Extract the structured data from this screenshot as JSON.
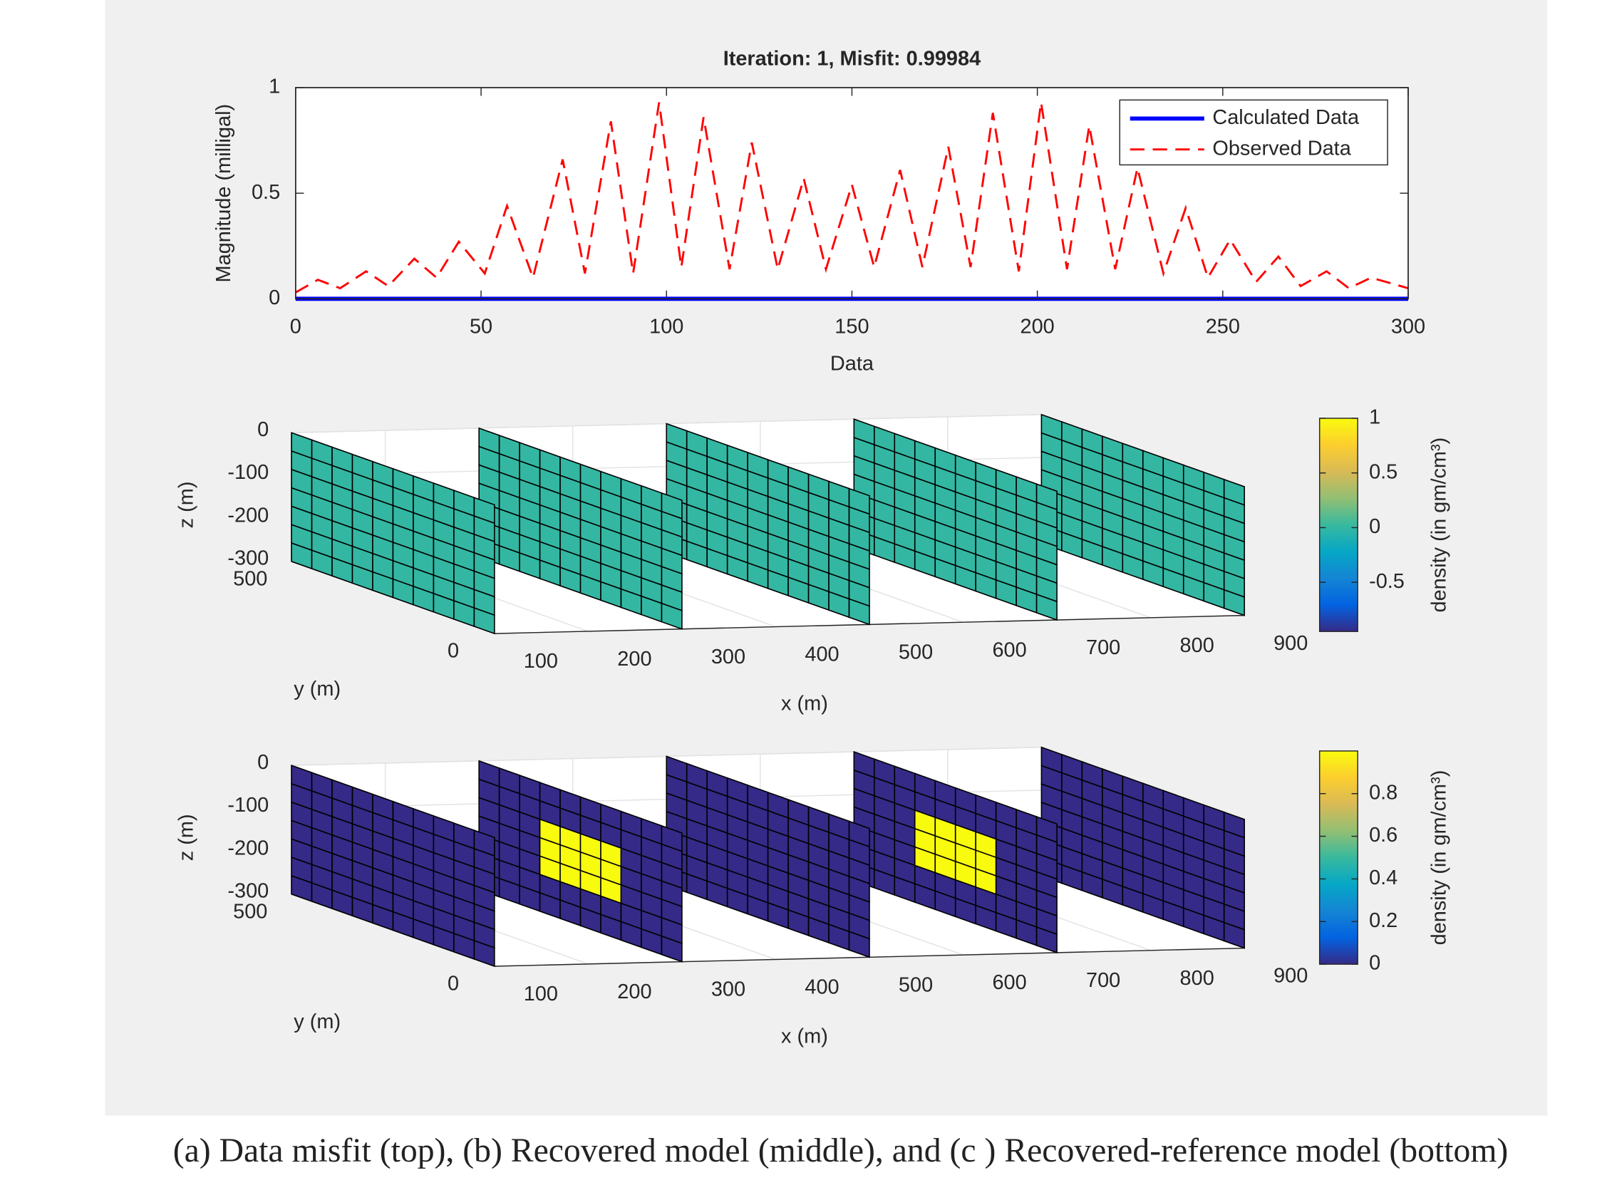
{
  "chart_data": [
    {
      "type": "line",
      "title": "Iteration: 1, Misfit: 0.99984",
      "xlabel": "Data",
      "ylabel": "Magnitude (milligal)",
      "xlim": [
        0,
        300
      ],
      "xticks": [
        0,
        50,
        100,
        150,
        200,
        250,
        300
      ],
      "ylim": [
        0,
        1
      ],
      "yticks": [
        0,
        0.5,
        1
      ],
      "grid": false,
      "legend": "upper right",
      "series": [
        {
          "name": "Calculated Data",
          "color": "#0000ff",
          "style": "solid",
          "x": [
            0,
            300
          ],
          "values": [
            0,
            0
          ]
        },
        {
          "name": "Observed Data",
          "color": "#ff0000",
          "style": "dashed",
          "x": [
            0,
            6,
            12,
            19,
            25,
            32,
            38,
            44,
            51,
            57,
            64,
            72,
            78,
            85,
            91,
            98,
            104,
            110,
            117,
            123,
            130,
            137,
            143,
            150,
            156,
            163,
            169,
            176,
            182,
            188,
            195,
            201,
            208,
            214,
            221,
            227,
            234,
            240,
            246,
            252,
            259,
            265,
            271,
            278,
            284,
            290,
            300
          ],
          "values": [
            0.03,
            0.09,
            0.05,
            0.13,
            0.06,
            0.19,
            0.1,
            0.27,
            0.12,
            0.44,
            0.1,
            0.66,
            0.12,
            0.84,
            0.12,
            0.93,
            0.15,
            0.86,
            0.14,
            0.74,
            0.14,
            0.57,
            0.14,
            0.54,
            0.15,
            0.61,
            0.15,
            0.72,
            0.15,
            0.88,
            0.13,
            0.93,
            0.14,
            0.82,
            0.14,
            0.62,
            0.12,
            0.43,
            0.1,
            0.28,
            0.08,
            0.2,
            0.06,
            0.13,
            0.05,
            0.1,
            0.05
          ]
        }
      ]
    },
    {
      "type": "slice3d",
      "xlabel": "x (m)",
      "ylabel": "y (m)",
      "zlabel": "z (m)",
      "xlim": [
        100,
        900
      ],
      "xticks": [
        100,
        200,
        300,
        400,
        500,
        600,
        700,
        800,
        900
      ],
      "ylim": [
        0,
        500
      ],
      "yticks": [
        0,
        500
      ],
      "zlim": [
        -300,
        0
      ],
      "zticks": [
        0,
        -100,
        -200,
        -300
      ],
      "colormap": [
        "#352a87",
        "#0363e1",
        "#1485d4",
        "#06a7c6",
        "#38b99e",
        "#92bf73",
        "#d9ba56",
        "#fcce2e",
        "#f9fb0e"
      ],
      "colorbar": {
        "label": "density (in gm/cm³)",
        "clim": [
          -0.95,
          1
        ],
        "ticks": [
          -0.5,
          0,
          0.5,
          1
        ]
      },
      "slices": [
        {
          "x": 100,
          "values": [
            [
              0,
              0,
              0,
              0,
              0,
              0,
              0,
              0,
              0,
              0
            ],
            [
              0,
              0,
              0,
              0,
              0,
              0,
              0,
              0,
              0,
              0
            ],
            [
              0,
              0,
              0,
              0,
              0,
              0,
              0,
              0,
              0,
              0
            ],
            [
              0,
              0,
              0,
              0,
              0,
              0,
              0,
              0,
              0,
              0
            ],
            [
              0,
              0,
              0,
              0,
              0,
              0,
              0,
              0,
              0,
              0
            ],
            [
              0,
              0,
              0,
              0,
              0,
              0,
              0,
              0,
              0,
              0
            ],
            [
              0,
              0,
              0,
              0,
              0,
              0,
              0,
              0,
              0,
              0
            ]
          ]
        },
        {
          "x": 300,
          "values": [
            [
              0,
              0,
              0,
              0,
              0,
              0,
              0,
              0,
              0,
              0
            ],
            [
              0,
              0,
              0,
              0,
              0,
              0,
              0,
              0,
              0,
              0
            ],
            [
              0,
              0,
              0,
              0,
              0,
              0,
              0,
              0,
              0,
              0
            ],
            [
              0,
              0,
              0,
              0,
              0,
              0,
              0,
              0,
              0,
              0
            ],
            [
              0,
              0,
              0,
              0,
              0,
              0,
              0,
              0,
              0,
              0
            ],
            [
              0,
              0,
              0,
              0,
              0,
              0,
              0,
              0,
              0,
              0
            ],
            [
              0,
              0,
              0,
              0,
              0,
              0,
              0,
              0,
              0,
              0
            ]
          ]
        },
        {
          "x": 500,
          "values": [
            [
              0,
              0,
              0,
              0,
              0,
              0,
              0,
              0,
              0,
              0
            ],
            [
              0,
              0,
              0,
              0,
              0,
              0,
              0,
              0,
              0,
              0
            ],
            [
              0,
              0,
              0,
              0,
              0,
              0,
              0,
              0,
              0,
              0
            ],
            [
              0,
              0,
              0,
              0,
              0,
              0,
              0,
              0,
              0,
              0
            ],
            [
              0,
              0,
              0,
              0,
              0,
              0,
              0,
              0,
              0,
              0
            ],
            [
              0,
              0,
              0,
              0,
              0,
              0,
              0,
              0,
              0,
              0
            ],
            [
              0,
              0,
              0,
              0,
              0,
              0,
              0,
              0,
              0,
              0
            ]
          ]
        },
        {
          "x": 700,
          "values": [
            [
              0,
              0,
              0,
              0,
              0,
              0,
              0,
              0,
              0,
              0
            ],
            [
              0,
              0,
              0,
              0,
              0,
              0,
              0,
              0,
              0,
              0
            ],
            [
              0,
              0,
              0,
              0,
              0,
              0,
              0,
              0,
              0,
              0
            ],
            [
              0,
              0,
              0,
              0,
              0,
              0,
              0,
              0,
              0,
              0
            ],
            [
              0,
              0,
              0,
              0,
              0,
              0,
              0,
              0,
              0,
              0
            ],
            [
              0,
              0,
              0,
              0,
              0,
              0,
              0,
              0,
              0,
              0
            ],
            [
              0,
              0,
              0,
              0,
              0,
              0,
              0,
              0,
              0,
              0
            ]
          ]
        },
        {
          "x": 900,
          "values": [
            [
              0,
              0,
              0,
              0,
              0,
              0,
              0,
              0,
              0,
              0
            ],
            [
              0,
              0,
              0,
              0,
              0,
              0,
              0,
              0,
              0,
              0
            ],
            [
              0,
              0,
              0,
              0,
              0,
              0,
              0,
              0,
              0,
              0
            ],
            [
              0,
              0,
              0,
              0,
              0,
              0,
              0,
              0,
              0,
              0
            ],
            [
              0,
              0,
              0,
              0,
              0,
              0,
              0,
              0,
              0,
              0
            ],
            [
              0,
              0,
              0,
              0,
              0,
              0,
              0,
              0,
              0,
              0
            ],
            [
              0,
              0,
              0,
              0,
              0,
              0,
              0,
              0,
              0,
              0
            ]
          ]
        }
      ]
    },
    {
      "type": "slice3d",
      "xlabel": "x (m)",
      "ylabel": "y (m)",
      "zlabel": "z (m)",
      "xlim": [
        100,
        900
      ],
      "xticks": [
        100,
        200,
        300,
        400,
        500,
        600,
        700,
        800,
        900
      ],
      "ylim": [
        0,
        500
      ],
      "yticks": [
        0,
        500
      ],
      "zlim": [
        -300,
        0
      ],
      "zticks": [
        0,
        -100,
        -200,
        -300
      ],
      "colormap": [
        "#352a87",
        "#0363e1",
        "#1485d4",
        "#06a7c6",
        "#38b99e",
        "#92bf73",
        "#d9ba56",
        "#fcce2e",
        "#f9fb0e"
      ],
      "colorbar": {
        "label": "density (in gm/cm³)",
        "clim": [
          0,
          1
        ],
        "ticks": [
          0,
          0.2,
          0.4,
          0.6,
          0.8
        ]
      },
      "slices": [
        {
          "x": 100,
          "values": [
            [
              0,
              0,
              0,
              0,
              0,
              0,
              0,
              0,
              0,
              0
            ],
            [
              0,
              0,
              0,
              0,
              0,
              0,
              0,
              0,
              0,
              0
            ],
            [
              0,
              0,
              0,
              0,
              0,
              0,
              0,
              0,
              0,
              0
            ],
            [
              0,
              0,
              0,
              0,
              0,
              0,
              0,
              0,
              0,
              0
            ],
            [
              0,
              0,
              0,
              0,
              0,
              0,
              0,
              0,
              0,
              0
            ],
            [
              0,
              0,
              0,
              0,
              0,
              0,
              0,
              0,
              0,
              0
            ],
            [
              0,
              0,
              0,
              0,
              0,
              0,
              0,
              0,
              0,
              0
            ]
          ]
        },
        {
          "x": 300,
          "values": [
            [
              0,
              0,
              0,
              0,
              0,
              0,
              0,
              0,
              0,
              0
            ],
            [
              0,
              0,
              0,
              0,
              0,
              0,
              0,
              0,
              0,
              0
            ],
            [
              0,
              0,
              0,
              1,
              1,
              1,
              1,
              0,
              0,
              0
            ],
            [
              0,
              0,
              0,
              1,
              1,
              1,
              1,
              0,
              0,
              0
            ],
            [
              0,
              0,
              0,
              1,
              1,
              1,
              1,
              0,
              0,
              0
            ],
            [
              0,
              0,
              0,
              0,
              0,
              0,
              0,
              0,
              0,
              0
            ],
            [
              0,
              0,
              0,
              0,
              0,
              0,
              0,
              0,
              0,
              0
            ]
          ]
        },
        {
          "x": 500,
          "values": [
            [
              0,
              0,
              0,
              0,
              0,
              0,
              0,
              0,
              0,
              0
            ],
            [
              0,
              0,
              0,
              0,
              0,
              0,
              0,
              0,
              0,
              0
            ],
            [
              0,
              0,
              0,
              0,
              0,
              0,
              0,
              0,
              0,
              0
            ],
            [
              0,
              0,
              0,
              0,
              0,
              0,
              0,
              0,
              0,
              0
            ],
            [
              0,
              0,
              0,
              0,
              0,
              0,
              0,
              0,
              0,
              0
            ],
            [
              0,
              0,
              0,
              0,
              0,
              0,
              0,
              0,
              0,
              0
            ],
            [
              0,
              0,
              0,
              0,
              0,
              0,
              0,
              0,
              0,
              0
            ]
          ]
        },
        {
          "x": 700,
          "values": [
            [
              0,
              0,
              0,
              0,
              0,
              0,
              0,
              0,
              0,
              0
            ],
            [
              0,
              0,
              0,
              0,
              0,
              0,
              0,
              0,
              0,
              0
            ],
            [
              0,
              0,
              0,
              1,
              1,
              1,
              1,
              0,
              0,
              0
            ],
            [
              0,
              0,
              0,
              1,
              1,
              1,
              1,
              0,
              0,
              0
            ],
            [
              0,
              0,
              0,
              1,
              1,
              1,
              1,
              0,
              0,
              0
            ],
            [
              0,
              0,
              0,
              0,
              0,
              0,
              0,
              0,
              0,
              0
            ],
            [
              0,
              0,
              0,
              0,
              0,
              0,
              0,
              0,
              0,
              0
            ]
          ]
        },
        {
          "x": 900,
          "values": [
            [
              0,
              0,
              0,
              0,
              0,
              0,
              0,
              0,
              0,
              0
            ],
            [
              0,
              0,
              0,
              0,
              0,
              0,
              0,
              0,
              0,
              0
            ],
            [
              0,
              0,
              0,
              0,
              0,
              0,
              0,
              0,
              0,
              0
            ],
            [
              0,
              0,
              0,
              0,
              0,
              0,
              0,
              0,
              0,
              0
            ],
            [
              0,
              0,
              0,
              0,
              0,
              0,
              0,
              0,
              0,
              0
            ],
            [
              0,
              0,
              0,
              0,
              0,
              0,
              0,
              0,
              0,
              0
            ],
            [
              0,
              0,
              0,
              0,
              0,
              0,
              0,
              0,
              0,
              0
            ]
          ]
        }
      ]
    }
  ],
  "caption": "(a) Data misfit (top), (b) Recovered model (middle), and (c ) Recovered-reference model (bottom)"
}
